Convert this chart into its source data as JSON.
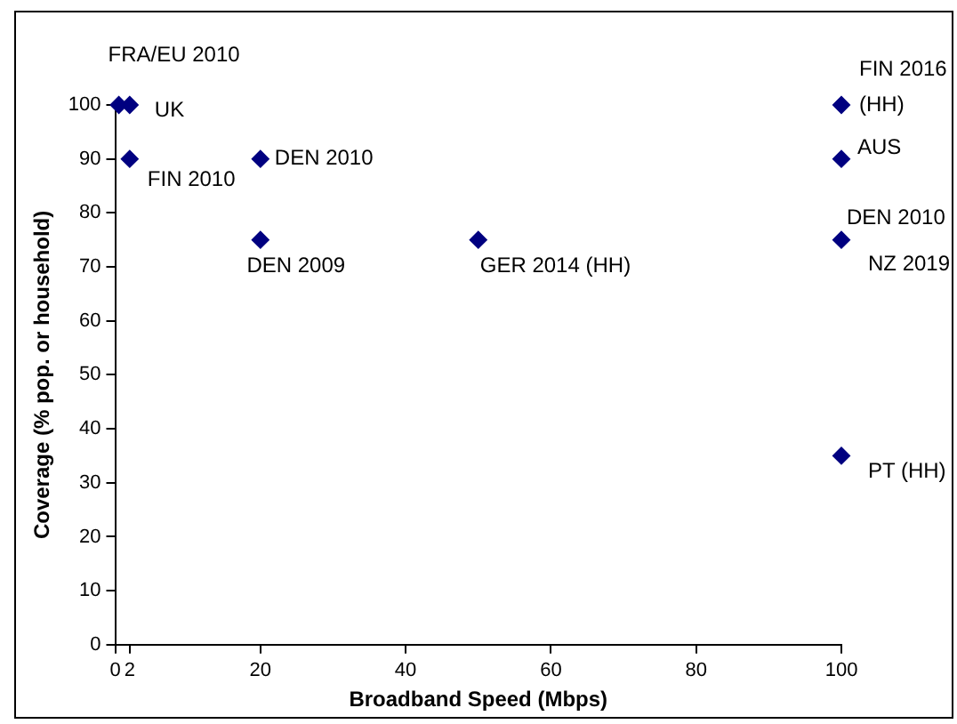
{
  "chart_data": {
    "type": "scatter",
    "xlabel": "Broadband Speed (Mbps)",
    "ylabel": "Coverage (% pop. or household)",
    "x": [
      0.5,
      2,
      2,
      20,
      20,
      50,
      100,
      100,
      100,
      100
    ],
    "values": [
      100,
      100,
      90,
      90,
      75,
      75,
      100,
      90,
      75,
      35
    ],
    "color": "#000080",
    "marker": "diamond",
    "xlim": [
      0,
      100
    ],
    "xticks": [
      0,
      2,
      20,
      40,
      60,
      80,
      100
    ],
    "ylim": [
      0,
      100
    ],
    "yticks": [
      0,
      10,
      20,
      30,
      40,
      50,
      60,
      70,
      80,
      90,
      100
    ],
    "grid": false,
    "legend": false,
    "annotations": [
      {
        "text": "FRA/EU 2010",
        "x": 0.5,
        "y": 100
      },
      {
        "text": "UK",
        "x": 2,
        "y": 100
      },
      {
        "text": "FIN 2010",
        "x": 2,
        "y": 90
      },
      {
        "text": "DEN 2010",
        "x": 20,
        "y": 90
      },
      {
        "text": "DEN 2009",
        "x": 20,
        "y": 75
      },
      {
        "text": "GER 2014 (HH)",
        "x": 50,
        "y": 75
      },
      {
        "text": "FIN 2016 (HH)",
        "x": 100,
        "y": 100
      },
      {
        "text": "AUS",
        "x": 100,
        "y": 90
      },
      {
        "text": "DEN 2010",
        "x": 100,
        "y": 75
      },
      {
        "text": "NZ 2019",
        "x": 100,
        "y": 75
      },
      {
        "text": "PT (HH)",
        "x": 100,
        "y": 35
      }
    ]
  }
}
